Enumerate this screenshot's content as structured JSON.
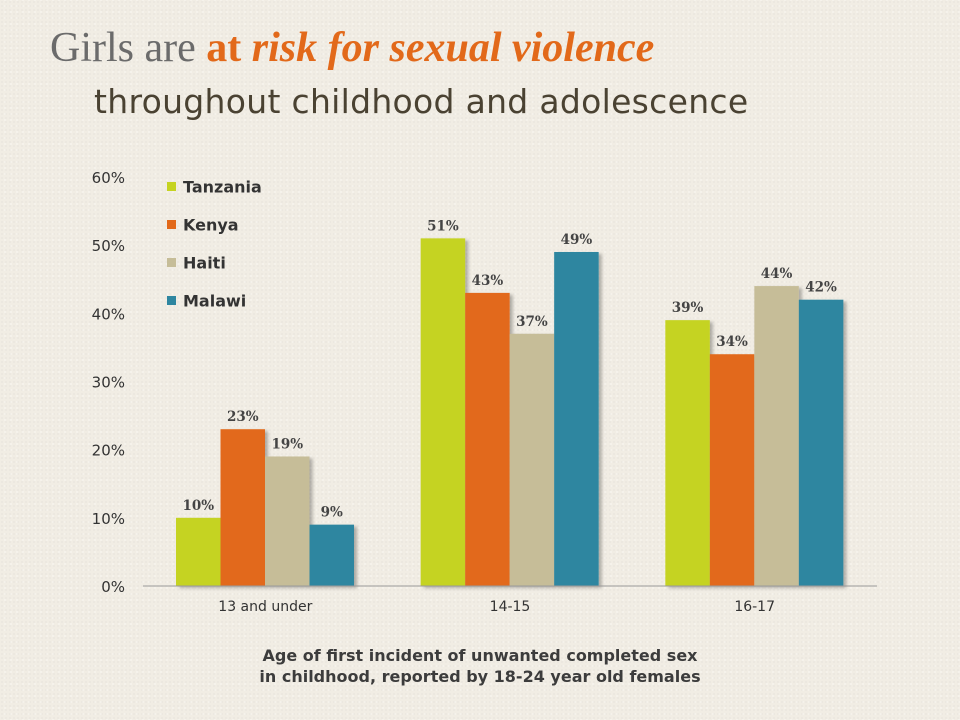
{
  "title": {
    "plain": "Girls are ",
    "accent_prefix": "at ",
    "accent_rest": "risk for sexual violence",
    "subtitle": "throughout childhood and adolescence"
  },
  "caption": {
    "line1": "Age of first incident of unwanted completed sex",
    "line2": "in childhood, reported by 18-24 year old females"
  },
  "colors": {
    "Tanzania": "#c5d321",
    "Kenya": "#e2691a",
    "Haiti": "#c6bd98",
    "Malawi": "#2e86a0",
    "title_accent": "#e2691a",
    "axis_text": "#333333"
  },
  "chart_data": {
    "type": "bar",
    "categories": [
      "13 and under",
      "14-15",
      "16-17"
    ],
    "series": [
      {
        "name": "Tanzania",
        "values": [
          10,
          51,
          39
        ],
        "labels": [
          "10%",
          "51%",
          "39%"
        ]
      },
      {
        "name": "Kenya",
        "values": [
          23,
          43,
          34
        ],
        "labels": [
          "23%",
          "43%",
          "34%"
        ]
      },
      {
        "name": "Haiti",
        "values": [
          19,
          37,
          44
        ],
        "labels": [
          "19%",
          "37%",
          "44%"
        ]
      },
      {
        "name": "Malawi",
        "values": [
          9,
          49,
          42
        ],
        "labels": [
          "9%",
          "49%",
          "42%"
        ]
      }
    ],
    "ylim": [
      0,
      60
    ],
    "yticks": [
      0,
      10,
      20,
      30,
      40,
      50,
      60
    ],
    "ytick_labels": [
      "0%",
      "10%",
      "20%",
      "30%",
      "40%",
      "50%",
      "60%"
    ],
    "legend": "top-left",
    "grid": false
  }
}
